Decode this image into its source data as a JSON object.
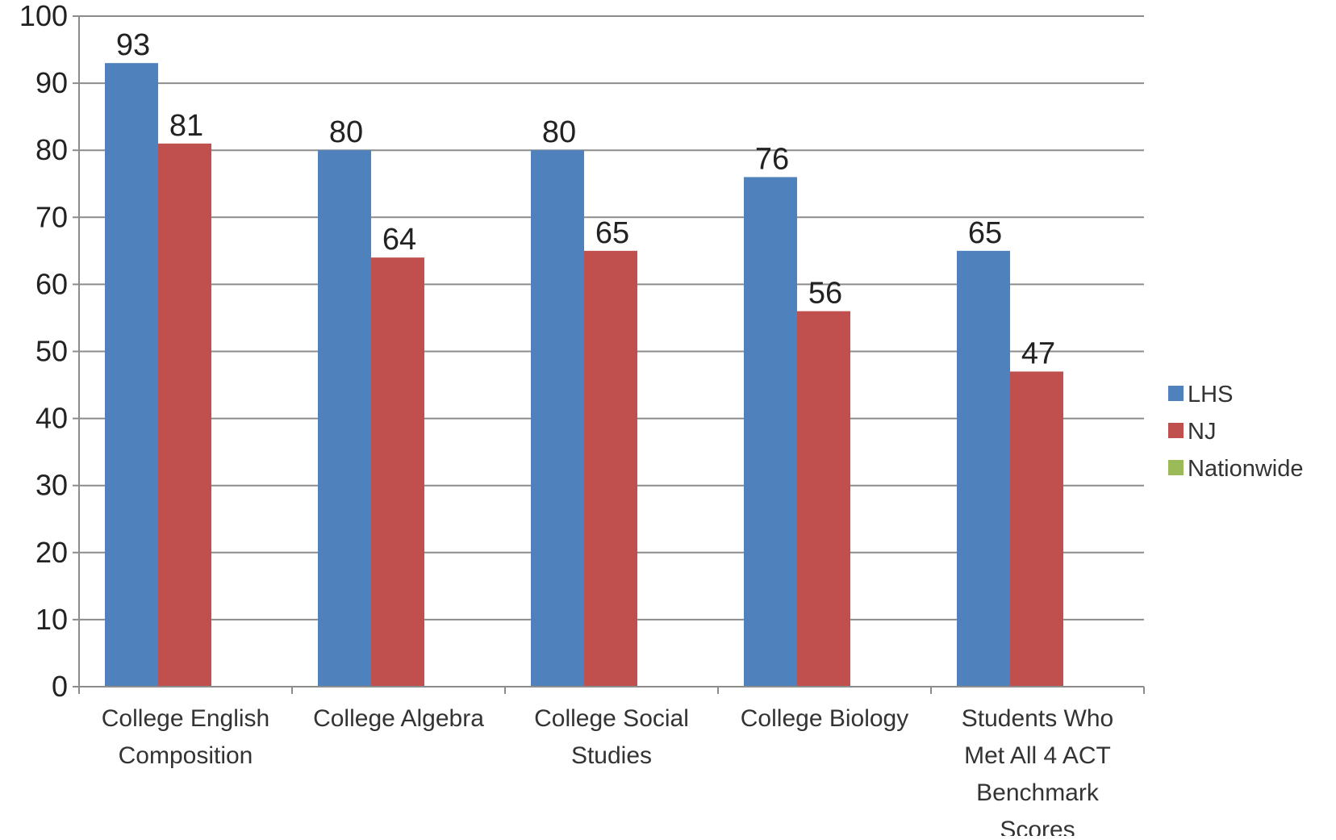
{
  "chart_data": {
    "type": "bar",
    "title": "",
    "xlabel": "",
    "ylabel": "",
    "ylim": [
      0,
      100
    ],
    "yticks": [
      "0",
      "10",
      "20",
      "30",
      "40",
      "50",
      "60",
      "70",
      "80",
      "90",
      "100"
    ],
    "grid": true,
    "legend_position": "right",
    "categories": [
      [
        "College English",
        "Composition"
      ],
      [
        "College Algebra"
      ],
      [
        "College Social",
        "Studies"
      ],
      [
        "College Biology"
      ],
      [
        "Students Who",
        "Met All 4 ACT",
        "Benchmark",
        "Scores"
      ]
    ],
    "series": [
      {
        "name": "LHS",
        "color": "#4f81bd",
        "values": [
          93,
          80,
          80,
          76,
          65
        ]
      },
      {
        "name": "NJ",
        "color": "#c0504d",
        "values": [
          81,
          64,
          65,
          56,
          47
        ]
      },
      {
        "name": "Nationwide",
        "color": "#9bbb59",
        "values": [
          null,
          null,
          null,
          null,
          null
        ]
      }
    ],
    "data_labels": true
  }
}
